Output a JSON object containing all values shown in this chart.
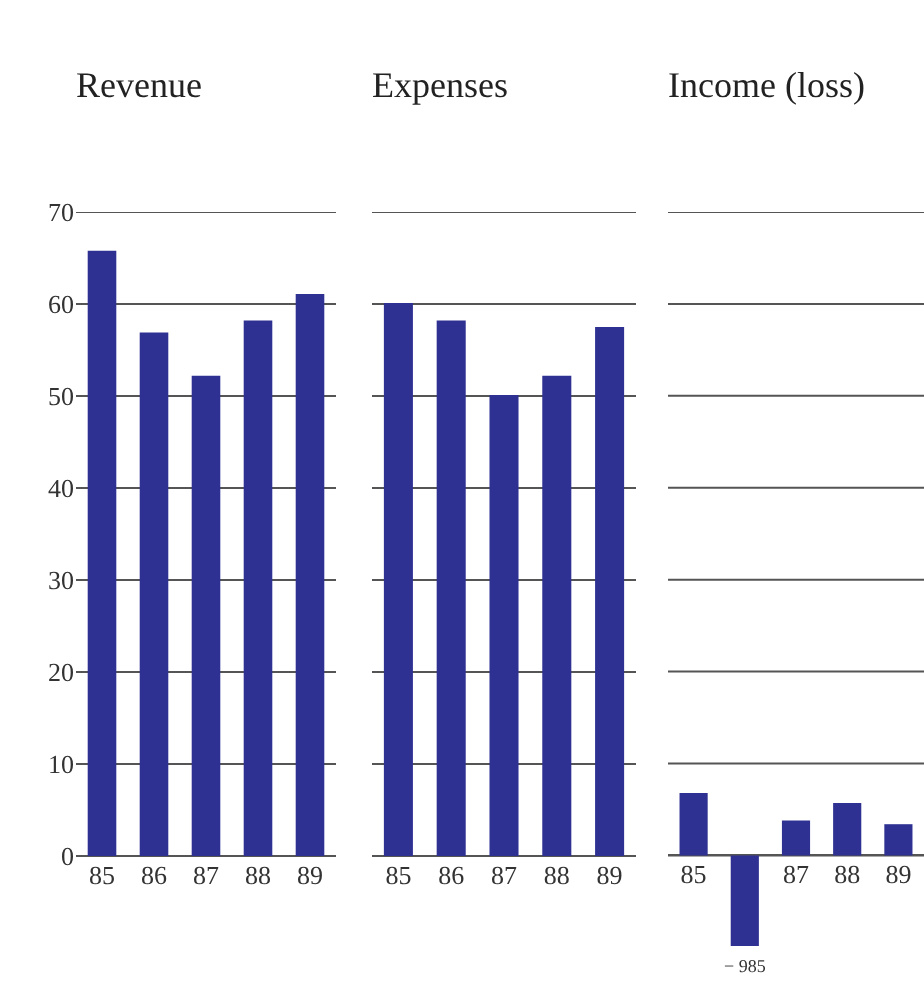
{
  "chart_data": [
    {
      "type": "bar",
      "title": "Revenue",
      "categories": [
        "85",
        "86",
        "87",
        "88",
        "89"
      ],
      "values": [
        65.8,
        56.9,
        52.2,
        58.2,
        61.1
      ],
      "color": "#2e3192",
      "ylim": [
        0,
        70
      ],
      "yticks": [
        0,
        10,
        20,
        30,
        40,
        50,
        60,
        70
      ],
      "grid": "y"
    },
    {
      "type": "bar",
      "title": "Expenses",
      "categories": [
        "85",
        "86",
        "87",
        "88",
        "89"
      ],
      "values": [
        60.1,
        58.2,
        50.1,
        52.2,
        57.5
      ],
      "color": "#2e3192",
      "ylim": [
        0,
        70
      ],
      "yticks": [
        0,
        10,
        20,
        30,
        40,
        50,
        60,
        70
      ],
      "grid": "y",
      "tick_labels": "x"
    },
    {
      "type": "bar",
      "title": "Income (loss)",
      "categories": [
        "85",
        null,
        "87",
        "88",
        "89"
      ],
      "values": [
        6.8,
        -9.85,
        3.8,
        5.7,
        3.4
      ],
      "annotations": [
        {
          "text": "− 985",
          "y": -9.85
        }
      ],
      "color": "#2e3192",
      "yticks": [
        0,
        10,
        20,
        30,
        40,
        50,
        60,
        70
      ],
      "grid": "y",
      "tick_labels": "x"
    }
  ]
}
